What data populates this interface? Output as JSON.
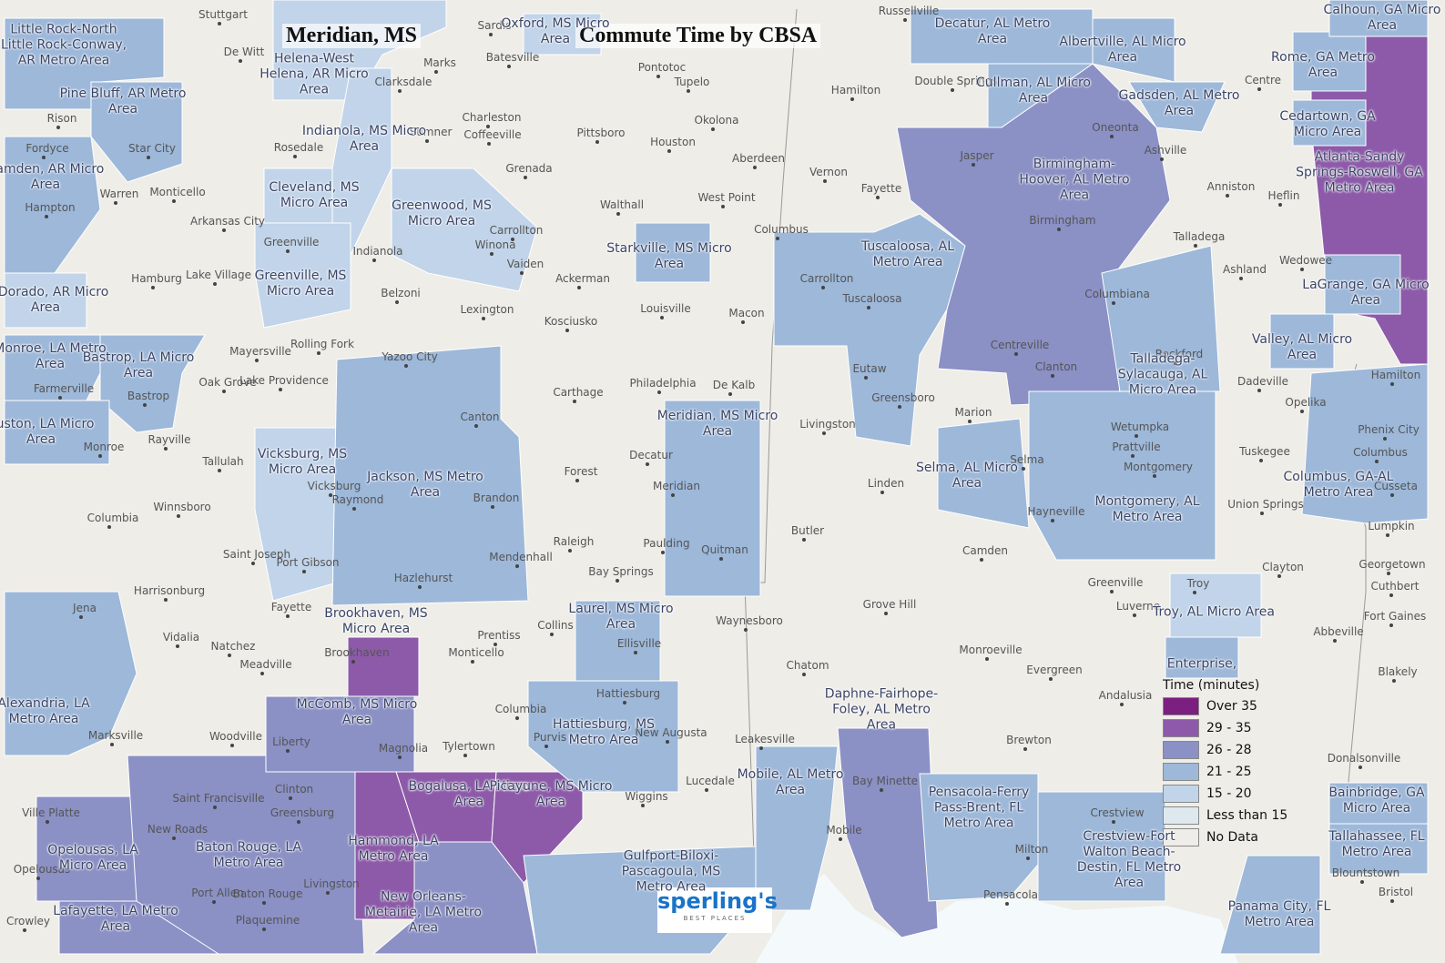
{
  "title": {
    "place": "Meridian, MS",
    "subject": "Commute Time by CBSA"
  },
  "logo": {
    "name": "sperling's",
    "tagline": "BEST PLACES"
  },
  "legend": {
    "title": "Time (minutes)",
    "items": [
      {
        "label": "Over 35",
        "color": "#7b1f80"
      },
      {
        "label": "29 - 35",
        "color": "#8d5aa9"
      },
      {
        "label": "26 - 28",
        "color": "#8b90c5"
      },
      {
        "label": "21 - 25",
        "color": "#9db8d9"
      },
      {
        "label": "15 - 20",
        "color": "#c1d4e9"
      },
      {
        "label": "Less than 15",
        "color": "#dde9ef"
      },
      {
        "label": "No Data",
        "color": "#efede8"
      }
    ]
  },
  "areas": [
    {
      "label": "Little Rock-North Little Rock-Conway, AR Metro Area",
      "color": "#9db8d9"
    },
    {
      "label": "Pine Bluff, AR Metro Area",
      "color": "#9db8d9"
    },
    {
      "label": "Camden, AR Micro Area",
      "color": "#9db8d9"
    },
    {
      "label": "El Dorado, AR Micro Area",
      "color": "#c1d4e9"
    },
    {
      "label": "Monroe, LA Metro Area",
      "color": "#9db8d9"
    },
    {
      "label": "Bastrop, LA Micro Area",
      "color": "#9db8d9"
    },
    {
      "label": "Ruston, LA Micro Area",
      "color": "#9db8d9"
    },
    {
      "label": "Alexandria, LA Metro Area",
      "color": "#9db8d9"
    },
    {
      "label": "Opelousas, LA Micro Area",
      "color": "#8b90c5"
    },
    {
      "label": "Lafayette, LA Metro Area",
      "color": "#8b90c5"
    },
    {
      "label": "Baton Rouge, LA Metro Area",
      "color": "#8b90c5"
    },
    {
      "label": "Helena-West Helena, AR Micro Area",
      "color": "#c1d4e9"
    },
    {
      "label": "Cleveland, MS Micro Area",
      "color": "#c1d4e9"
    },
    {
      "label": "Indianola, MS Micro Area",
      "color": "#c1d4e9"
    },
    {
      "label": "Greenville, MS Micro Area",
      "color": "#c1d4e9"
    },
    {
      "label": "Greenwood, MS Micro Area",
      "color": "#c1d4e9"
    },
    {
      "label": "Vicksburg, MS Micro Area",
      "color": "#c1d4e9"
    },
    {
      "label": "Jackson, MS Metro Area",
      "color": "#9db8d9"
    },
    {
      "label": "Brookhaven, MS Micro Area",
      "color": "#8d5aa9"
    },
    {
      "label": "McComb, MS Micro Area",
      "color": "#8b90c5"
    },
    {
      "label": "Bogalusa, LA Micro Area",
      "color": "#8d5aa9"
    },
    {
      "label": "Picayune, MS Micro Area",
      "color": "#8d5aa9"
    },
    {
      "label": "Hammond, LA Metro Area",
      "color": "#8d5aa9"
    },
    {
      "label": "New Orleans-Metairie, LA Metro Area",
      "color": "#8b90c5"
    },
    {
      "label": "Starkville, MS Micro Area",
      "color": "#9db8d9"
    },
    {
      "label": "Meridian, MS Micro Area",
      "color": "#9db8d9"
    },
    {
      "label": "Laurel, MS Micro Area",
      "color": "#9db8d9"
    },
    {
      "label": "Hattiesburg, MS Metro Area",
      "color": "#9db8d9"
    },
    {
      "label": "Gulfport-Biloxi-Pascagoula, MS Metro Area",
      "color": "#9db8d9"
    },
    {
      "label": "Mobile, AL Metro Area",
      "color": "#9db8d9"
    },
    {
      "label": "Daphne-Fairhope-Foley, AL Metro Area",
      "color": "#8b90c5"
    },
    {
      "label": "Pensacola-Ferry Pass-Brent, FL Metro Area",
      "color": "#9db8d9"
    },
    {
      "label": "Crestview-Fort Walton Beach-Destin, FL Metro Area",
      "color": "#9db8d9"
    },
    {
      "label": "Tuscaloosa, AL Metro Area",
      "color": "#9db8d9"
    },
    {
      "label": "Birmingham-Hoover, AL Metro Area",
      "color": "#8b90c5"
    },
    {
      "label": "Cullman, AL Micro Area",
      "color": "#9db8d9"
    },
    {
      "label": "Gadsden, AL Metro Area",
      "color": "#9db8d9"
    },
    {
      "label": "Albertville, AL Micro Area",
      "color": "#9db8d9"
    },
    {
      "label": "Decatur, AL Metro Area",
      "color": "#9db8d9"
    },
    {
      "label": "Selma, AL Micro Area",
      "color": "#9db8d9"
    },
    {
      "label": "Montgomery, AL Metro Area",
      "color": "#9db8d9"
    },
    {
      "label": "Talladega-Sylacauga, AL Micro Area",
      "color": "#9db8d9"
    },
    {
      "label": "Troy, AL Micro Area",
      "color": "#c1d4e9"
    },
    {
      "label": "Enterprise,",
      "color": "#9db8d9"
    },
    {
      "label": "Atlanta-Sandy Springs-Roswell, GA Metro Area",
      "color": "#8d5aa9"
    },
    {
      "label": "Rome, GA Metro Area",
      "color": "#9db8d9"
    },
    {
      "label": "Cedartown, GA Micro Area",
      "color": "#9db8d9"
    },
    {
      "label": "LaGrange, GA Micro Area",
      "color": "#9db8d9"
    },
    {
      "label": "Valley, AL Micro Area",
      "color": "#9db8d9"
    },
    {
      "label": "Columbus, GA-AL Metro Area",
      "color": "#9db8d9"
    },
    {
      "label": "Calhoun, GA Micro Area",
      "color": "#9db8d9"
    },
    {
      "label": "Bainbridge, GA Micro Area",
      "color": "#9db8d9"
    },
    {
      "label": "Tallahassee, FL Metro Area",
      "color": "#9db8d9"
    },
    {
      "label": "Panama City, FL Metro Area",
      "color": "#9db8d9"
    },
    {
      "label": "Oxford, MS Micro Area",
      "color": "#c1d4e9"
    }
  ],
  "cities": [
    "Stuttgart",
    "De Witt",
    "Rison",
    "Fordyce",
    "Star City",
    "Warren",
    "Monticello",
    "Hampton",
    "Arkansas City",
    "Hamburg",
    "Lake Village",
    "Greenville",
    "Indianola",
    "Rosedale",
    "Clarksdale",
    "Marks",
    "Batesville",
    "Sardis",
    "Charleston",
    "Sumner",
    "Coffeeville",
    "Grenada",
    "Pittsboro",
    "Houston",
    "Okolona",
    "Aberdeen",
    "Hamilton",
    "Vernon",
    "Fayette",
    "Walthall",
    "West Point",
    "Columbus",
    "Carrollton",
    "Winona",
    "Vaiden",
    "Ackerman",
    "Belzoni",
    "Lexington",
    "Kosciusko",
    "Louisville",
    "Macon",
    "Yazoo City",
    "Canton",
    "Carthage",
    "Philadelphia",
    "De Kalb",
    "Decatur",
    "Forest",
    "Meridian",
    "Brandon",
    "Raymond",
    "Vicksburg",
    "Mendenhall",
    "Hazlehurst",
    "Raleigh",
    "Bay Springs",
    "Paulding",
    "Quitman",
    "Port Gibson",
    "Saint Joseph",
    "Fayette",
    "Harrisonburg",
    "Jena",
    "Vidalia",
    "Natchez",
    "Meadville",
    "Brookhaven",
    "Monticello",
    "Prentiss",
    "Collins",
    "Ellisville",
    "Waynesboro",
    "Hattiesburg",
    "Columbia",
    "Purvis",
    "New Augusta",
    "Leakesville",
    "Woodville",
    "Marksville",
    "Liberty",
    "Magnolia",
    "Tylertown",
    "Lucedale",
    "Wiggins",
    "Clinton",
    "Greensburg",
    "Saint Francisville",
    "New Roads",
    "Ville Platte",
    "Opelousas",
    "Livingston",
    "Port Allen",
    "Baton Rouge",
    "Plaquemine",
    "Crowley",
    "Mobile",
    "Bay Minette",
    "Milton",
    "Pensacola",
    "Crestview",
    "Brewton",
    "Evergreen",
    "Monroeville",
    "Andalusia",
    "Chatom",
    "Butler",
    "Grove Hill",
    "Camden",
    "Linden",
    "Livingston",
    "Greensboro",
    "Eutaw",
    "Marion",
    "Selma",
    "Hayneville",
    "Prattville",
    "Wetumpka",
    "Montgomery",
    "Clanton",
    "Centreville",
    "Columbiana",
    "Tuscaloosa",
    "Carrollton",
    "Birmingham",
    "Jasper",
    "Oneonta",
    "Ashville",
    "Anniston",
    "Heflin",
    "Talladega",
    "Ashland",
    "Wedowee",
    "Rockford",
    "Dadeville",
    "Opelika",
    "Tuskegee",
    "Union Springs",
    "Lumpkin",
    "Clayton",
    "Georgetown",
    "Cuthbert",
    "Fort Gaines",
    "Abbeville",
    "Blakely",
    "Greenville",
    "Luverne",
    "Troy",
    "Donalsonville",
    "Blountstown",
    "Bristol",
    "Hamilton",
    "Phenix City",
    "Cusseta",
    "Columbus",
    "Centre",
    "Double Springs",
    "Russellville",
    "Mayersville",
    "Rolling Fork",
    "Oak Grove",
    "Lake Providence",
    "Tallulah",
    "Rayville",
    "Farmerville",
    "Bastrop",
    "Monroe",
    "Columbia",
    "Winnsboro",
    "Pontotoc",
    "Tupelo"
  ]
}
